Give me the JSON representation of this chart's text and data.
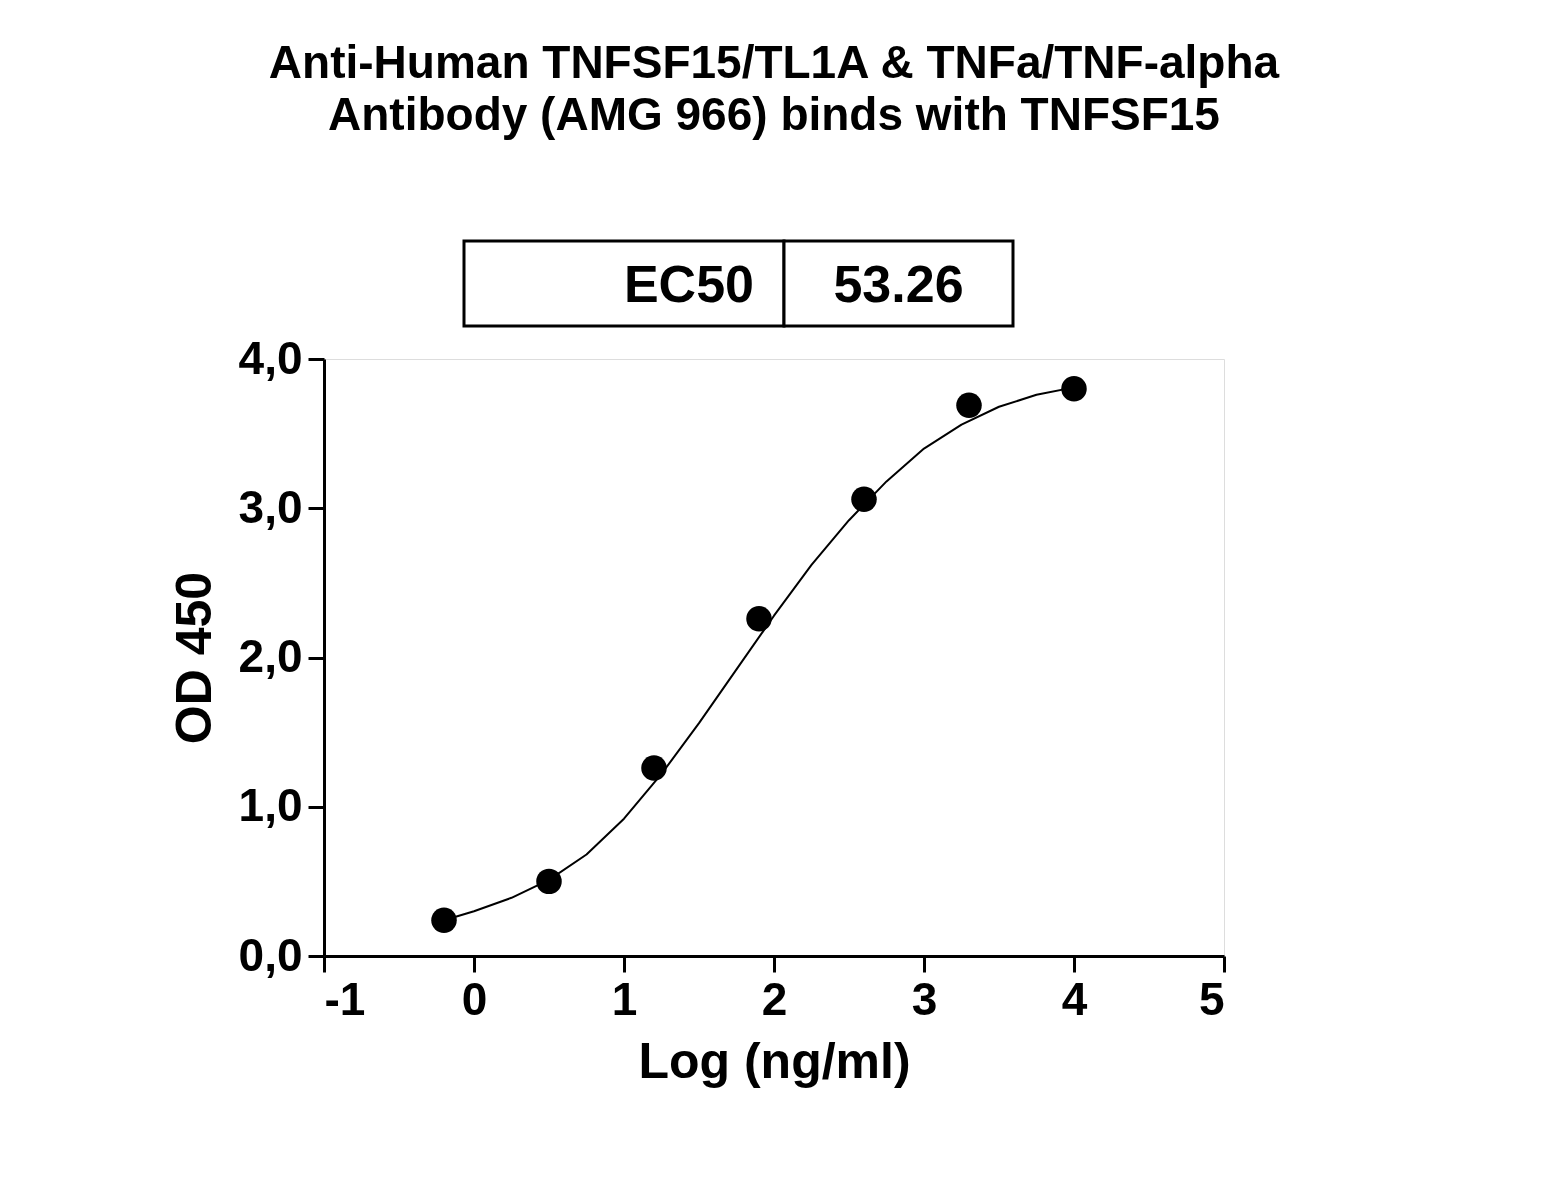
{
  "chart_data": {
    "type": "scatter",
    "title": "Anti-Human TNFSF15/TL1A & TNFa/TNF-alpha\nAntibody (AMG 966) binds with TNFSF15",
    "xlabel": "Log (ng/ml)",
    "ylabel": "OD 450",
    "annotations": [
      "EC50",
      "53.26"
    ],
    "xlim": [
      -1,
      5
    ],
    "xticks": [
      -1,
      0,
      1,
      2,
      3,
      4,
      5
    ],
    "ylim": [
      0,
      4
    ],
    "yticks": [
      {
        "value": 0,
        "label": "0,0"
      },
      {
        "value": 1,
        "label": "1,0"
      },
      {
        "value": 2,
        "label": "2,0"
      },
      {
        "value": 3,
        "label": "3,0"
      },
      {
        "value": 4,
        "label": "4,0"
      }
    ],
    "grid": false,
    "series": [
      {
        "type": "scatter",
        "marker": "circle",
        "color": "#000000",
        "x": [
          -0.2,
          0.5,
          1.2,
          1.9,
          2.6,
          3.3,
          4.0
        ],
        "values": [
          0.24,
          0.5,
          1.26,
          2.26,
          3.06,
          3.69,
          3.8
        ]
      },
      {
        "type": "line",
        "line_style": "solid",
        "color": "#000000",
        "x": [
          -0.2,
          0,
          0.25,
          0.5,
          0.75,
          1,
          1.25,
          1.5,
          1.75,
          2,
          2.25,
          2.5,
          2.75,
          3,
          3.25,
          3.5,
          3.75,
          4
        ],
        "values": [
          0.24,
          0.3,
          0.39,
          0.51,
          0.68,
          0.92,
          1.22,
          1.56,
          1.92,
          2.28,
          2.62,
          2.92,
          3.18,
          3.4,
          3.56,
          3.68,
          3.76,
          3.81
        ]
      }
    ]
  }
}
